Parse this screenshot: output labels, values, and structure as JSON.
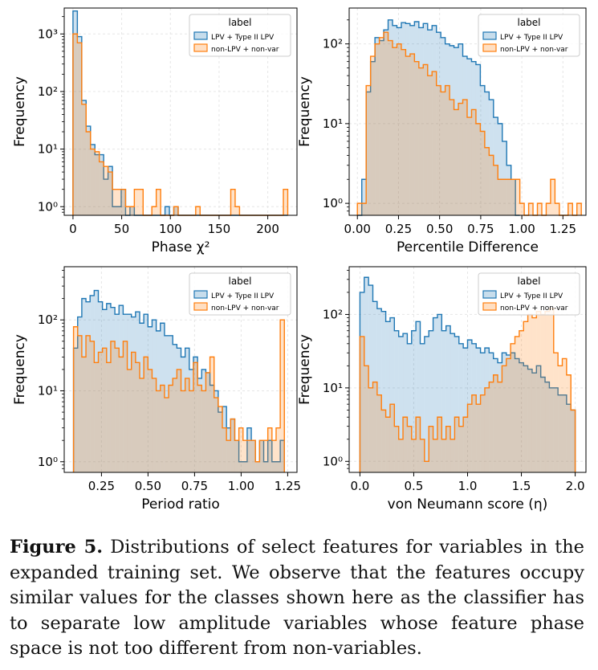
{
  "colors": {
    "lpv_fill": "#1f77b4",
    "lpv_edge": "#1f77b4",
    "non_fill": "#ff7f0e",
    "non_edge": "#ff7f0e",
    "grid": "#e6e6e6",
    "axis": "#000000"
  },
  "legend_title": "label",
  "chart_data": [
    {
      "type": "histogram",
      "xlabel": "Phase χ²",
      "ylabel": "Frequency",
      "log_y": true,
      "xlim": [
        -9,
        230
      ],
      "ylim_exp": [
        -0.15,
        3.45
      ],
      "xticks": [
        0,
        50,
        100,
        150,
        200
      ],
      "xtick_labels": [
        "0",
        "50",
        "100",
        "150",
        "200"
      ],
      "legend_position": "top-right",
      "series": [
        {
          "name": "LPV + Type II LPV",
          "bin_start": 0,
          "bin_width": 4.5,
          "values": [
            2500,
            900,
            70,
            25,
            12,
            8,
            8,
            3,
            5,
            1,
            1,
            2,
            0,
            1,
            0,
            0,
            0,
            0,
            0,
            0,
            0,
            1,
            0,
            1,
            0,
            0,
            0,
            0,
            0,
            0,
            0,
            0,
            0,
            0,
            0,
            0,
            0,
            0,
            0,
            0,
            0,
            0,
            0,
            0,
            0,
            0,
            0,
            0,
            0
          ]
        },
        {
          "name": "non-LPV + non-var",
          "bin_start": 0,
          "bin_width": 4.5,
          "values": [
            1000,
            700,
            60,
            20,
            10,
            9,
            6,
            5,
            4,
            2,
            2,
            2,
            1,
            1,
            2,
            2,
            0,
            0,
            1,
            2,
            0,
            0,
            0,
            1,
            0,
            0,
            0,
            0,
            1,
            0,
            0,
            0,
            0,
            0,
            0,
            0,
            2,
            1,
            0,
            0,
            0,
            0,
            0,
            0,
            0,
            0,
            0,
            0,
            2
          ]
        }
      ]
    },
    {
      "type": "histogram",
      "xlabel": "Percentile Difference",
      "ylabel": "Frequency",
      "log_y": true,
      "xlim": [
        -0.05,
        1.39
      ],
      "ylim_exp": [
        -0.15,
        2.45
      ],
      "xticks": [
        0,
        0.25,
        0.5,
        0.75,
        1.0,
        1.25
      ],
      "xtick_labels": [
        "0.00",
        "0.25",
        "0.50",
        "0.75",
        "1.00",
        "1.25"
      ],
      "legend_position": "top-right",
      "series": [
        {
          "name": "LPV + Type II LPV",
          "bin_start": 0.0,
          "bin_width": 0.0267,
          "values": [
            0,
            2,
            25,
            60,
            120,
            110,
            150,
            200,
            170,
            160,
            185,
            180,
            170,
            190,
            160,
            180,
            150,
            170,
            140,
            120,
            100,
            95,
            90,
            100,
            70,
            65,
            60,
            55,
            30,
            25,
            20,
            12,
            10,
            6,
            3,
            2,
            0
          ]
        },
        {
          "name": "non-LPV + non-var",
          "bin_start": 0.0,
          "bin_width": 0.0267,
          "values": [
            1,
            1,
            30,
            70,
            100,
            120,
            140,
            110,
            90,
            100,
            85,
            70,
            75,
            60,
            50,
            55,
            40,
            45,
            30,
            25,
            30,
            20,
            15,
            18,
            20,
            12,
            15,
            10,
            8,
            5,
            4,
            3,
            2,
            2,
            2,
            2,
            2,
            1,
            0,
            1,
            0,
            1,
            0,
            1,
            2,
            1,
            0,
            0,
            1,
            0,
            1
          ]
        }
      ]
    },
    {
      "type": "histogram",
      "xlabel": "Period ratio",
      "ylabel": "Frequency",
      "log_y": true,
      "xlim": [
        0.05,
        1.3
      ],
      "ylim_exp": [
        -0.15,
        2.75
      ],
      "xticks": [
        0.25,
        0.5,
        0.75,
        1.0,
        1.25
      ],
      "xtick_labels": [
        "0.25",
        "0.50",
        "0.75",
        "1.00",
        "1.25"
      ],
      "legend_position": "top-right",
      "series": [
        {
          "name": "LPV + Type II LPV",
          "bin_start": 0.1,
          "bin_width": 0.0222,
          "values": [
            40,
            110,
            200,
            180,
            220,
            260,
            180,
            140,
            170,
            150,
            120,
            160,
            120,
            120,
            110,
            130,
            90,
            120,
            80,
            100,
            70,
            90,
            60,
            60,
            45,
            40,
            30,
            40,
            20,
            30,
            15,
            20,
            18,
            12,
            10,
            5,
            6,
            3,
            4,
            2,
            1,
            1,
            3,
            2,
            1,
            2,
            1,
            2,
            1,
            1,
            2
          ]
        },
        {
          "name": "non-LPV + non-var",
          "bin_start": 0.1,
          "bin_width": 0.0222,
          "values": [
            80,
            60,
            30,
            60,
            50,
            25,
            35,
            40,
            25,
            50,
            40,
            30,
            50,
            20,
            35,
            25,
            15,
            30,
            20,
            15,
            10,
            12,
            8,
            12,
            15,
            20,
            10,
            15,
            10,
            25,
            12,
            10,
            18,
            30,
            8,
            6,
            3,
            2,
            4,
            2,
            3,
            2,
            2,
            2,
            1,
            2,
            2,
            3,
            2,
            3,
            100
          ]
        }
      ]
    },
    {
      "type": "histogram",
      "xlabel": "von Neumann score (η)",
      "ylabel": "Frequency",
      "log_y": true,
      "xlim": [
        -0.1,
        2.1
      ],
      "ylim_exp": [
        -0.15,
        2.65
      ],
      "xticks": [
        0,
        0.5,
        1.0,
        1.5,
        2.0
      ],
      "xtick_labels": [
        "0.0",
        "0.5",
        "1.0",
        "1.5",
        "2.0"
      ],
      "legend_position": "top-right",
      "series": [
        {
          "name": "LPV + Type II LPV",
          "bin_start": 0.0,
          "bin_width": 0.04,
          "values": [
            200,
            320,
            250,
            150,
            120,
            110,
            80,
            90,
            60,
            50,
            55,
            40,
            60,
            80,
            40,
            50,
            60,
            90,
            100,
            60,
            70,
            55,
            50,
            40,
            35,
            45,
            40,
            35,
            30,
            35,
            30,
            25,
            22,
            30,
            28,
            30,
            25,
            22,
            20,
            18,
            16,
            20,
            14,
            12,
            10,
            10,
            8,
            8,
            6,
            5
          ]
        },
        {
          "name": "non-LPV + non-var",
          "bin_start": 0.0,
          "bin_width": 0.04,
          "values": [
            50,
            20,
            10,
            12,
            8,
            5,
            4,
            6,
            3,
            2,
            4,
            3,
            2,
            4,
            2,
            1,
            3,
            2,
            4,
            2,
            3,
            2,
            4,
            3,
            4,
            6,
            8,
            6,
            8,
            10,
            12,
            15,
            12,
            20,
            25,
            40,
            50,
            60,
            80,
            100,
            90,
            110,
            100,
            110,
            120,
            30,
            20,
            25,
            15,
            5
          ]
        }
      ]
    }
  ],
  "caption": {
    "label": "Figure 5.",
    "text": "Distributions of select features for variables in the expanded training set. We observe that the features occupy similar values for the classes shown here as the classifier has to separate low amplitude variables whose feature phase space is not too different from non-variables."
  }
}
